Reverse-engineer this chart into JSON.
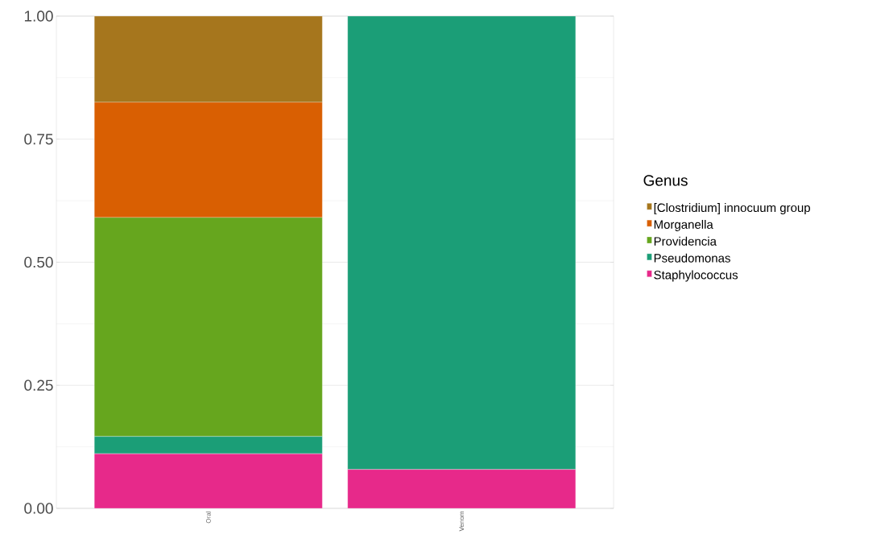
{
  "chart_data": {
    "type": "bar",
    "stacked": true,
    "legend_title": "Genus",
    "legend": "right",
    "grid": "y",
    "categories": [
      "Oral",
      "Venom"
    ],
    "series": [
      {
        "name": "Staphylococcus",
        "color": "#e7298a",
        "values": [
          0.111,
          0.079
        ]
      },
      {
        "name": "Pseudomonas",
        "color": "#1b9e77",
        "values": [
          0.035,
          0.921
        ]
      },
      {
        "name": "Providencia",
        "color": "#66a61e",
        "values": [
          0.445,
          0
        ]
      },
      {
        "name": "Morganella",
        "color": "#d95f02",
        "values": [
          0.234,
          0
        ]
      },
      {
        "name": "[Clostridium] innocuum group",
        "color": "#a6761d",
        "values": [
          0.175,
          0
        ]
      }
    ],
    "ylim": [
      0,
      1
    ],
    "yticks": [
      {
        "value": 0,
        "label": "0.00"
      },
      {
        "value": 0.25,
        "label": "0.25"
      },
      {
        "value": 0.5,
        "label": "0.50"
      },
      {
        "value": 0.75,
        "label": "0.75"
      },
      {
        "value": 1,
        "label": "1.00"
      }
    ]
  }
}
